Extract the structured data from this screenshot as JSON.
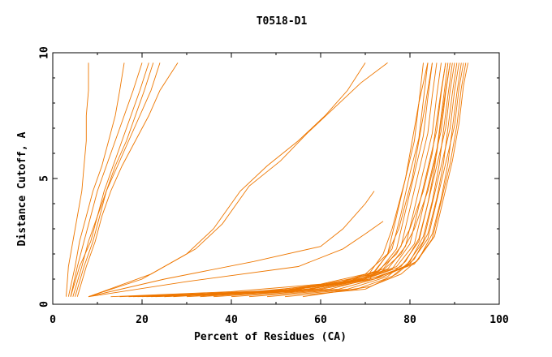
{
  "chart_data": {
    "type": "line",
    "title": "T0518-D1",
    "xlabel": "Percent of Residues (CA)",
    "ylabel": "Distance Cutoff, A",
    "xlim": [
      0,
      100
    ],
    "ylim": [
      0,
      10
    ],
    "xticks": [
      "0",
      "20",
      "40",
      "60",
      "80",
      "100"
    ],
    "yticks": [
      "0",
      "5",
      "10"
    ],
    "grid": false,
    "legend": "none",
    "line_color": "#ee7700",
    "series": [
      {
        "x": [
          3,
          3.5,
          4.5,
          5.5,
          6.5,
          7,
          7.5,
          7.5,
          8,
          8
        ],
        "y": [
          0.3,
          1.5,
          2.5,
          3.5,
          4.5,
          5.5,
          6.5,
          7.5,
          8.5,
          9.6
        ]
      },
      {
        "x": [
          3.5,
          5,
          6,
          7.5,
          9,
          11,
          12.5,
          14,
          15,
          16
        ],
        "y": [
          0.3,
          1.5,
          2.5,
          3.5,
          4.5,
          5.5,
          6.5,
          7.5,
          8.5,
          9.6
        ]
      },
      {
        "x": [
          4,
          5.5,
          7,
          8.5,
          10,
          12,
          14,
          16,
          18,
          20
        ],
        "y": [
          0.3,
          1.5,
          2.5,
          3.5,
          4.5,
          5.5,
          6.5,
          7.5,
          8.5,
          9.6
        ]
      },
      {
        "x": [
          4.5,
          6.5,
          8,
          10,
          11.5,
          13.5,
          15.5,
          17.5,
          19.5,
          21.5
        ],
        "y": [
          0.3,
          1.5,
          2.5,
          3.5,
          4.5,
          5.5,
          6.5,
          7.5,
          8.5,
          9.6
        ]
      },
      {
        "x": [
          5,
          7,
          9,
          10.5,
          12,
          14,
          16.5,
          18.5,
          20.5,
          22.5
        ],
        "y": [
          0.3,
          1.5,
          2.5,
          3.5,
          4.5,
          5.5,
          6.5,
          7.5,
          8.5,
          9.6
        ]
      },
      {
        "x": [
          4,
          6,
          8.5,
          10,
          12,
          14.5,
          17,
          19.5,
          22,
          24
        ],
        "y": [
          0.3,
          1.5,
          2.5,
          3.5,
          4.5,
          5.5,
          6.5,
          7.5,
          8.5,
          9.6
        ]
      },
      {
        "x": [
          5.5,
          7.5,
          9.5,
          11,
          13,
          15.5,
          18.5,
          21.5,
          24,
          28
        ],
        "y": [
          0.3,
          1.5,
          2.5,
          3.5,
          4.5,
          5.5,
          6.5,
          7.5,
          8.5,
          9.6
        ]
      },
      {
        "x": [
          8,
          20,
          30,
          36,
          42,
          48,
          55,
          61,
          66,
          70
        ],
        "y": [
          0.3,
          1.0,
          2.0,
          3.0,
          4.5,
          5.5,
          6.5,
          7.5,
          8.5,
          9.6
        ]
      },
      {
        "x": [
          8,
          22,
          32,
          38,
          44,
          51,
          57,
          63,
          69,
          75
        ],
        "y": [
          0.3,
          1.2,
          2.2,
          3.2,
          4.7,
          5.7,
          6.8,
          7.8,
          8.8,
          9.6
        ]
      },
      {
        "x": [
          8,
          25,
          45,
          60,
          65,
          68,
          70,
          72
        ],
        "y": [
          0.3,
          1.0,
          1.7,
          2.3,
          3.0,
          3.6,
          4.0,
          4.5
        ]
      },
      {
        "x": [
          8,
          30,
          55,
          65,
          70,
          74
        ],
        "y": [
          0.3,
          0.9,
          1.5,
          2.2,
          2.8,
          3.3
        ]
      },
      {
        "x": [
          13,
          40,
          60,
          70,
          75,
          77,
          79,
          81,
          82,
          83
        ],
        "y": [
          0.3,
          0.5,
          0.8,
          1.2,
          2.0,
          3.5,
          5.0,
          6.5,
          8.0,
          9.6
        ]
      },
      {
        "x": [
          15,
          45,
          63,
          72,
          76,
          78,
          80,
          82,
          83,
          84
        ],
        "y": [
          0.3,
          0.5,
          0.8,
          1.3,
          2.2,
          3.6,
          5.2,
          6.6,
          8.1,
          9.6
        ]
      },
      {
        "x": [
          17,
          47,
          65,
          73,
          77,
          79,
          81,
          83,
          84,
          85
        ],
        "y": [
          0.3,
          0.5,
          0.9,
          1.3,
          2.2,
          3.7,
          5.2,
          6.7,
          8.2,
          9.6
        ]
      },
      {
        "x": [
          19,
          49,
          66,
          74,
          78,
          80,
          82,
          84,
          85,
          86
        ],
        "y": [
          0.3,
          0.5,
          0.9,
          1.4,
          2.3,
          3.8,
          5.3,
          6.8,
          8.3,
          9.6
        ]
      },
      {
        "x": [
          21,
          51,
          67,
          75,
          79,
          81,
          83,
          85,
          86,
          87
        ],
        "y": [
          0.3,
          0.5,
          0.9,
          1.4,
          2.3,
          3.8,
          5.3,
          6.8,
          8.3,
          9.6
        ]
      },
      {
        "x": [
          23,
          53,
          68,
          76,
          80,
          82,
          84,
          86,
          87,
          88
        ],
        "y": [
          0.3,
          0.5,
          0.9,
          1.4,
          2.4,
          3.9,
          5.4,
          6.9,
          8.4,
          9.6
        ]
      },
      {
        "x": [
          25,
          55,
          69,
          77,
          81,
          83,
          85,
          87,
          88,
          89
        ],
        "y": [
          0.3,
          0.6,
          1.0,
          1.5,
          2.4,
          3.9,
          5.4,
          6.9,
          8.4,
          9.6
        ]
      },
      {
        "x": [
          27,
          57,
          70,
          78,
          82,
          84,
          86,
          88,
          89,
          90
        ],
        "y": [
          0.3,
          0.6,
          1.0,
          1.5,
          2.5,
          4.0,
          5.5,
          7.0,
          8.5,
          9.6
        ]
      },
      {
        "x": [
          30,
          59,
          71,
          79,
          83,
          85,
          87,
          89,
          90,
          91
        ],
        "y": [
          0.3,
          0.6,
          1.0,
          1.5,
          2.5,
          4.0,
          5.5,
          7.0,
          8.5,
          9.6
        ]
      },
      {
        "x": [
          33,
          60,
          72,
          80,
          84,
          86,
          88,
          90,
          91,
          92
        ],
        "y": [
          0.3,
          0.6,
          1.0,
          1.6,
          2.6,
          4.1,
          5.6,
          7.1,
          8.6,
          9.6
        ]
      },
      {
        "x": [
          36,
          62,
          73,
          81,
          85,
          87,
          89,
          90.5,
          91.5,
          92.5
        ],
        "y": [
          0.3,
          0.6,
          1.1,
          1.6,
          2.6,
          4.1,
          5.6,
          7.1,
          8.6,
          9.6
        ]
      },
      {
        "x": [
          40,
          64,
          74,
          81.5,
          85.5,
          87.5,
          89.5,
          91,
          92,
          93
        ],
        "y": [
          0.3,
          0.6,
          1.1,
          1.7,
          2.7,
          4.2,
          5.7,
          7.2,
          8.7,
          9.6
        ]
      },
      {
        "x": [
          44,
          66,
          75,
          79,
          82,
          84,
          85.5,
          86.5,
          87.5,
          88.5
        ],
        "y": [
          0.3,
          0.6,
          1.1,
          1.7,
          2.6,
          4.0,
          5.4,
          6.8,
          8.2,
          9.6
        ]
      },
      {
        "x": [
          48,
          68,
          76,
          80,
          83,
          85,
          86.5,
          87.5,
          88.5,
          89.5
        ],
        "y": [
          0.3,
          0.6,
          1.1,
          1.7,
          2.7,
          4.1,
          5.5,
          6.9,
          8.3,
          9.6
        ]
      },
      {
        "x": [
          52,
          70,
          77,
          81,
          84,
          86,
          87.5,
          88.5,
          89.5,
          90.5
        ],
        "y": [
          0.3,
          0.6,
          1.2,
          1.8,
          2.8,
          4.2,
          5.6,
          7.0,
          8.4,
          9.6
        ]
      },
      {
        "x": [
          56,
          71,
          78,
          82,
          85,
          87,
          88.5,
          89.5,
          90.5,
          91.5
        ],
        "y": [
          0.3,
          0.7,
          1.2,
          1.8,
          2.8,
          4.2,
          5.6,
          7.0,
          8.4,
          9.6
        ]
      },
      {
        "x": [
          20,
          55,
          72,
          77,
          80,
          83,
          85,
          86,
          87,
          88
        ],
        "y": [
          0.3,
          0.6,
          1.2,
          2.0,
          3.0,
          4.5,
          6.0,
          7.3,
          8.5,
          9.6
        ]
      },
      {
        "x": [
          25,
          58,
          73,
          78,
          81,
          84,
          86,
          87,
          88,
          89
        ],
        "y": [
          0.3,
          0.6,
          1.2,
          2.0,
          3.0,
          4.5,
          6.0,
          7.3,
          8.5,
          9.6
        ]
      },
      {
        "x": [
          18,
          50,
          70,
          74,
          76,
          77.5,
          79,
          80.5,
          82,
          84
        ],
        "y": [
          0.3,
          0.5,
          1.0,
          2.0,
          3.0,
          4.0,
          5.0,
          6.5,
          8.0,
          9.6
        ]
      },
      {
        "x": [
          22,
          54,
          71,
          75,
          77.5,
          79,
          80.5,
          82,
          83.5,
          85
        ],
        "y": [
          0.3,
          0.5,
          1.0,
          2.0,
          3.0,
          4.0,
          5.0,
          6.5,
          8.0,
          9.6
        ]
      }
    ]
  }
}
